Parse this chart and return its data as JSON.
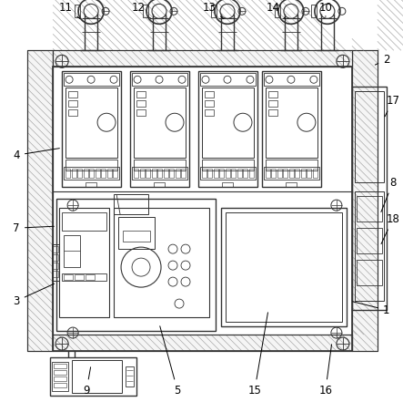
{
  "fig_width": 4.43,
  "fig_height": 4.41,
  "dpi": 100,
  "bg_color": "#ffffff",
  "line_color": "#333333",
  "line_width": 0.8
}
